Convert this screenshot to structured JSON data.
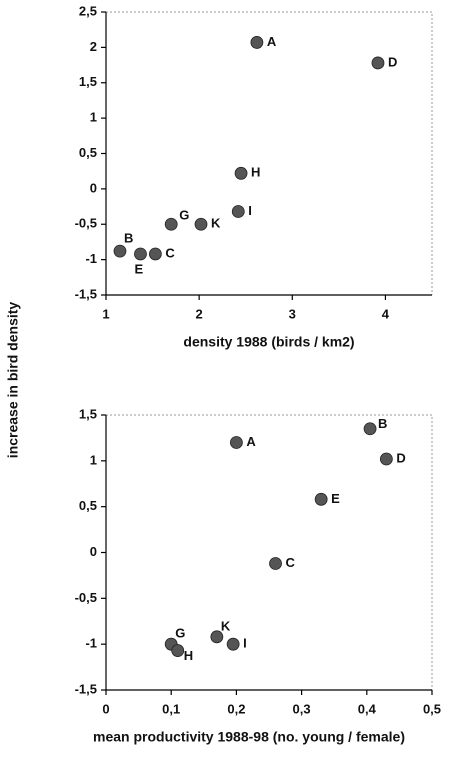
{
  "y_label": "increase in bird density",
  "chart_data": [
    {
      "type": "scatter",
      "xlabel": "density 1988 (birds / km2)",
      "labels": [
        "A",
        "D",
        "H",
        "I",
        "K",
        "G",
        "B",
        "E",
        "C"
      ],
      "x": [
        2.62,
        3.92,
        2.45,
        2.42,
        2.02,
        1.7,
        1.15,
        1.37,
        1.53
      ],
      "values": [
        2.07,
        1.78,
        0.22,
        -0.32,
        -0.5,
        -0.5,
        -0.88,
        -0.92,
        -0.92
      ],
      "color": "#555555",
      "xlim": [
        1,
        4.5
      ],
      "ylim": [
        -1.5,
        2.5
      ],
      "xticks": [
        1,
        2,
        3,
        4
      ],
      "yticks": [
        {
          "value": 2.5,
          "label": "2,5"
        },
        2,
        {
          "value": 1.5,
          "label": "1,5"
        },
        1,
        {
          "value": 0.5,
          "label": "0,5"
        },
        0,
        {
          "value": -0.5,
          "label": "-0,5"
        },
        -1,
        {
          "value": -1.5,
          "label": "-1,5"
        }
      ]
    },
    {
      "type": "scatter",
      "xlabel": "mean productivity 1988-98 (no. young / female)",
      "labels": [
        "A",
        "B",
        "D",
        "E",
        "C",
        "K",
        "I",
        "G",
        "H"
      ],
      "x": [
        0.2,
        0.405,
        0.43,
        0.33,
        0.26,
        0.17,
        0.195,
        0.1,
        0.11
      ],
      "values": [
        1.2,
        1.35,
        1.02,
        0.58,
        -0.12,
        -0.92,
        -1.0,
        -1.0,
        -1.07
      ],
      "color": "#555555",
      "xlim": [
        0,
        0.5
      ],
      "ylim": [
        -1.5,
        1.5
      ],
      "xticks": [
        0,
        {
          "value": 0.1,
          "label": "0,1"
        },
        {
          "value": 0.2,
          "label": "0,2"
        },
        {
          "value": 0.3,
          "label": "0,3"
        },
        {
          "value": 0.4,
          "label": "0,4"
        },
        {
          "value": 0.5,
          "label": "0,5"
        }
      ],
      "yticks": [
        {
          "value": 1.5,
          "label": "1,5"
        },
        1,
        {
          "value": 0.5,
          "label": "0,5"
        },
        0,
        {
          "value": -0.5,
          "label": "-0,5"
        },
        -1,
        {
          "value": -1.5,
          "label": "-1,5"
        }
      ]
    }
  ]
}
